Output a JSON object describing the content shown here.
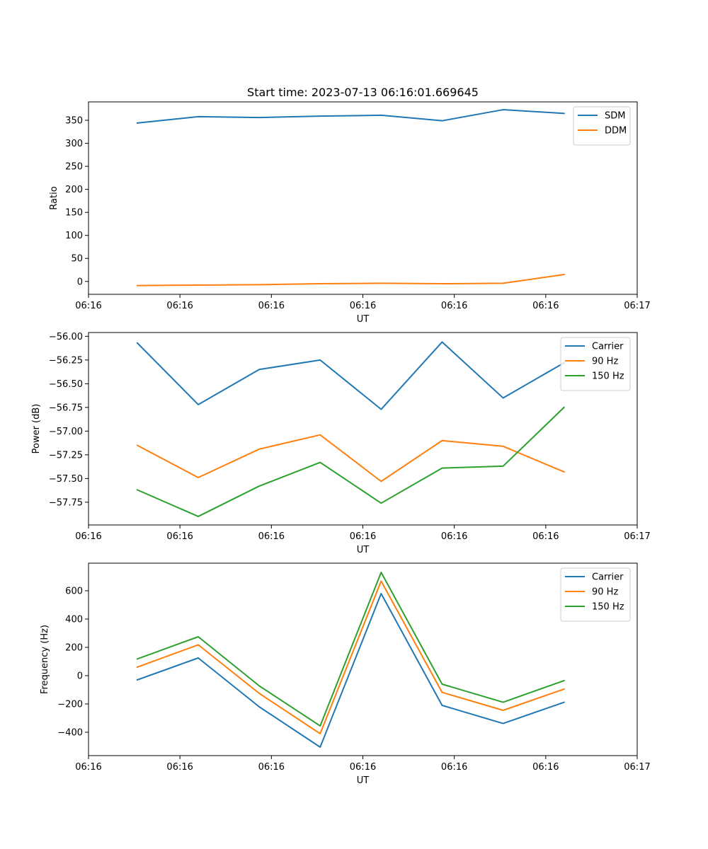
{
  "chart_data": [
    {
      "type": "line",
      "title": "Start time: 2023-07-13 06:16:01.669645",
      "xlabel": "UT",
      "ylabel": "Ratio",
      "x": [
        1,
        2,
        3,
        4,
        5,
        6,
        7,
        8
      ],
      "xlim": [
        0.2,
        9.2
      ],
      "x_ticks": [
        0.2,
        1.7,
        3.2,
        4.7,
        6.2,
        7.7,
        9.2
      ],
      "x_tick_labels": [
        "06:16",
        "06:16",
        "06:16",
        "06:16",
        "06:16",
        "06:16",
        "06:17"
      ],
      "ylim": [
        -28,
        390
      ],
      "y_ticks": [
        0,
        50,
        100,
        150,
        200,
        250,
        300,
        350
      ],
      "y_tick_labels": [
        "0",
        "50",
        "100",
        "150",
        "200",
        "250",
        "300",
        "350"
      ],
      "grid": false,
      "legend_position": "top-right",
      "series": [
        {
          "name": "SDM",
          "color": "#1f77b4",
          "values": [
            344,
            358,
            356,
            359,
            361,
            349,
            373,
            365
          ]
        },
        {
          "name": "DDM",
          "color": "#ff7f0e",
          "values": [
            -9,
            -8,
            -7,
            -5,
            -4,
            -5,
            -4,
            15
          ]
        }
      ]
    },
    {
      "type": "line",
      "title": "",
      "xlabel": "UT",
      "ylabel": "Power (dB)",
      "x": [
        1,
        2,
        3,
        4,
        5,
        6,
        7,
        8
      ],
      "xlim": [
        0.2,
        9.2
      ],
      "x_ticks": [
        0.2,
        1.7,
        3.2,
        4.7,
        6.2,
        7.7,
        9.2
      ],
      "x_tick_labels": [
        "06:16",
        "06:16",
        "06:16",
        "06:16",
        "06:16",
        "06:16",
        "06:17"
      ],
      "ylim": [
        -57.99,
        -55.96
      ],
      "y_ticks": [
        -57.75,
        -57.5,
        -57.25,
        -57.0,
        -56.75,
        -56.5,
        -56.25,
        -56.0
      ],
      "y_tick_labels": [
        "−57.75",
        "−57.50",
        "−57.25",
        "−57.00",
        "−56.75",
        "−56.50",
        "−56.25",
        "−56.00"
      ],
      "grid": false,
      "legend_position": "top-right",
      "series": [
        {
          "name": "Carrier",
          "color": "#1f77b4",
          "values": [
            -56.07,
            -56.72,
            -56.35,
            -56.25,
            -56.77,
            -56.06,
            -56.65,
            -56.28
          ]
        },
        {
          "name": "90 Hz",
          "color": "#ff7f0e",
          "values": [
            -57.15,
            -57.49,
            -57.19,
            -57.04,
            -57.53,
            -57.1,
            -57.16,
            -57.43
          ]
        },
        {
          "name": "150 Hz",
          "color": "#2ca02c",
          "values": [
            -57.62,
            -57.9,
            -57.58,
            -57.33,
            -57.76,
            -57.39,
            -57.37,
            -56.75
          ]
        }
      ]
    },
    {
      "type": "line",
      "title": "",
      "xlabel": "UT",
      "ylabel": "Frequency (Hz)",
      "x": [
        1,
        2,
        3,
        4,
        5,
        6,
        7,
        8
      ],
      "xlim": [
        0.2,
        9.2
      ],
      "x_ticks": [
        0.2,
        1.7,
        3.2,
        4.7,
        6.2,
        7.7,
        9.2
      ],
      "x_tick_labels": [
        "06:16",
        "06:16",
        "06:16",
        "06:16",
        "06:16",
        "06:16",
        "06:17"
      ],
      "ylim": [
        -565,
        795
      ],
      "y_ticks": [
        -400,
        -200,
        0,
        200,
        400,
        600
      ],
      "y_tick_labels": [
        "−400",
        "−200",
        "0",
        "200",
        "400",
        "600"
      ],
      "grid": false,
      "legend_position": "top-right",
      "series": [
        {
          "name": "Carrier",
          "color": "#1f77b4",
          "values": [
            -30,
            125,
            -220,
            -505,
            580,
            -210,
            -338,
            -188
          ]
        },
        {
          "name": "90 Hz",
          "color": "#ff7f0e",
          "values": [
            60,
            218,
            -125,
            -410,
            668,
            -118,
            -245,
            -95
          ]
        },
        {
          "name": "150 Hz",
          "color": "#2ca02c",
          "values": [
            118,
            275,
            -72,
            -355,
            730,
            -60,
            -188,
            -35
          ]
        }
      ]
    }
  ]
}
